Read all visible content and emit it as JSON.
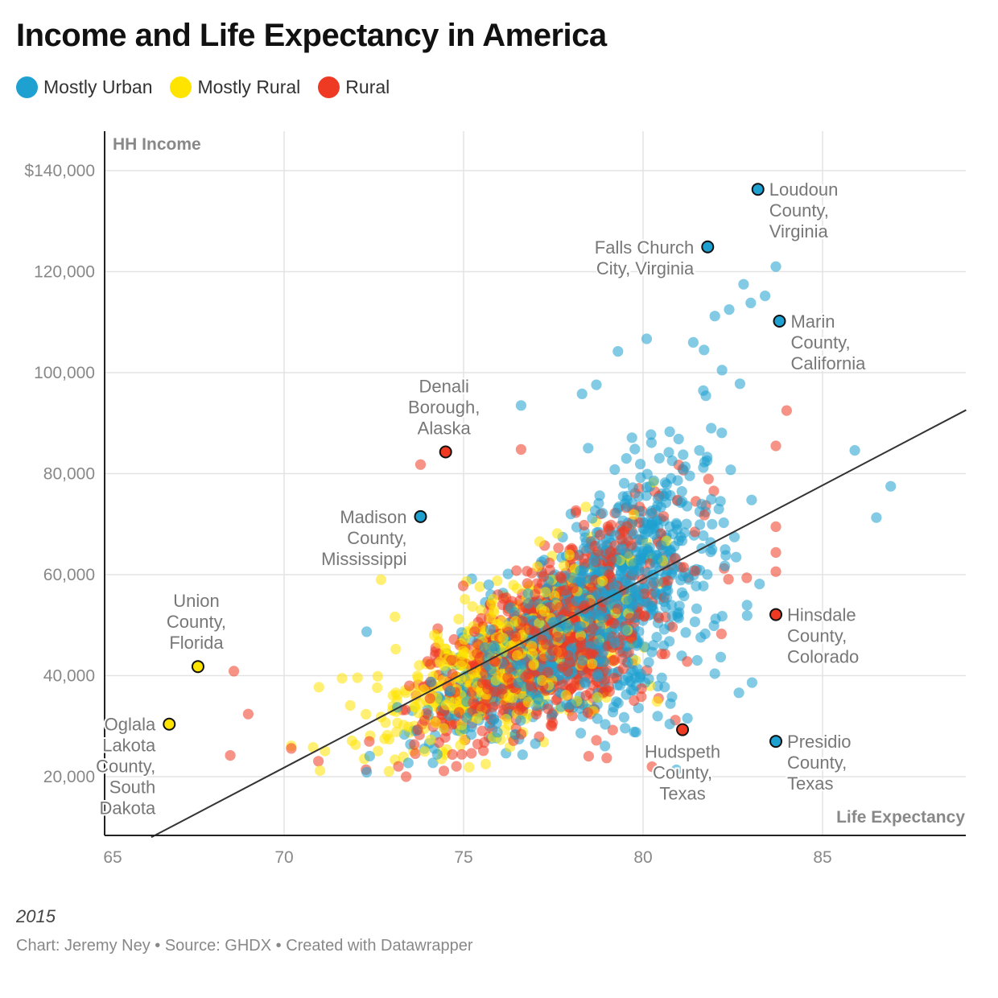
{
  "title": "Income and Life Expectancy in America",
  "legend": [
    {
      "label": "Mostly Urban",
      "color": "#1ea1d0"
    },
    {
      "label": "Mostly Rural",
      "color": "#ffe400"
    },
    {
      "label": "Rural",
      "color": "#ee3a22"
    }
  ],
  "footer": {
    "period": "2015",
    "credit": "Chart: Jeremy Ney • Source: GHDX • Created with Datawrapper"
  },
  "chart_data": {
    "type": "scatter",
    "title": "Income and Life Expectancy in America",
    "xlabel": "Life Expectancy",
    "ylabel": "HH Income",
    "xlim": [
      65,
      89
    ],
    "ylim": [
      8000,
      148000
    ],
    "x_ticks": [
      65,
      70,
      75,
      80,
      85
    ],
    "x_tick_labels": [
      "65",
      "70",
      "75",
      "80",
      "85"
    ],
    "y_ticks": [
      20000,
      40000,
      60000,
      80000,
      100000,
      120000,
      140000
    ],
    "y_tick_labels": [
      "20,000",
      "40,000",
      "60,000",
      "80,000",
      "100,000",
      "120,000",
      "$140,000"
    ],
    "grid": true,
    "legend_position": "top-left",
    "trend_line": {
      "from": [
        66.3,
        8000
      ],
      "to": [
        89,
        92600
      ],
      "color": "#333333"
    },
    "bulk_points_note": "approx. 3000 counties; dense cloud centred near life expectancy 78 and income $50,000",
    "highlighted": [
      {
        "name": "Loudoun County, Virginia",
        "lines": [
          "Loudoun",
          "County,",
          "Virginia"
        ],
        "x": 83.2,
        "y": 136300,
        "category": "Mostly Urban",
        "label_side": "right"
      },
      {
        "name": "Falls Church City, Virginia",
        "lines": [
          "Falls Church",
          "City, Virginia"
        ],
        "x": 81.8,
        "y": 124900,
        "category": "Mostly Urban",
        "label_side": "left"
      },
      {
        "name": "Marin County, California",
        "lines": [
          "Marin",
          "County,",
          "California"
        ],
        "x": 83.8,
        "y": 110200,
        "category": "Mostly Urban",
        "label_side": "right"
      },
      {
        "name": "Denali Borough, Alaska",
        "lines": [
          "Denali",
          "Borough,",
          "Alaska"
        ],
        "x": 74.5,
        "y": 84300,
        "category": "Rural",
        "label_side": "above"
      },
      {
        "name": "Madison County, Mississippi",
        "lines": [
          "Madison",
          "County,",
          "Mississippi"
        ],
        "x": 73.8,
        "y": 71500,
        "category": "Mostly Urban",
        "label_side": "left"
      },
      {
        "name": "Union County, Florida",
        "lines": [
          "Union",
          "County,",
          "Florida"
        ],
        "x": 67.6,
        "y": 41800,
        "category": "Mostly Rural",
        "label_side": "above"
      },
      {
        "name": "Oglala Lakota County, South Dakota",
        "lines": [
          "Oglala",
          "Lakota",
          "County,",
          "South",
          "Dakota"
        ],
        "x": 66.8,
        "y": 30400,
        "category": "Mostly Rural",
        "label_side": "left"
      },
      {
        "name": "Hinsdale County, Colorado",
        "lines": [
          "Hinsdale",
          "County,",
          "Colorado"
        ],
        "x": 83.7,
        "y": 52100,
        "category": "Rural",
        "label_side": "right"
      },
      {
        "name": "Hudspeth County, Texas",
        "lines": [
          "Hudspeth",
          "County,",
          "Texas"
        ],
        "x": 81.1,
        "y": 29300,
        "category": "Rural",
        "label_side": "below"
      },
      {
        "name": "Presidio County, Texas",
        "lines": [
          "Presidio",
          "County,",
          "Texas"
        ],
        "x": 83.7,
        "y": 27000,
        "category": "Mostly Urban",
        "label_side": "right"
      }
    ],
    "outliers": [
      {
        "x": 85.9,
        "y": 84600,
        "category": "Mostly Urban"
      },
      {
        "x": 86.9,
        "y": 77500,
        "category": "Mostly Urban"
      },
      {
        "x": 86.5,
        "y": 71300,
        "category": "Mostly Urban"
      },
      {
        "x": 84.0,
        "y": 92500,
        "category": "Rural"
      },
      {
        "x": 83.7,
        "y": 85500,
        "category": "Rural"
      },
      {
        "x": 83.7,
        "y": 69500,
        "category": "Rural"
      },
      {
        "x": 83.7,
        "y": 64400,
        "category": "Rural"
      },
      {
        "x": 83.7,
        "y": 60600,
        "category": "Rural"
      },
      {
        "x": 82.8,
        "y": 117500,
        "category": "Mostly Urban"
      },
      {
        "x": 83.4,
        "y": 115200,
        "category": "Mostly Urban"
      },
      {
        "x": 83.7,
        "y": 121000,
        "category": "Mostly Urban"
      },
      {
        "x": 83.0,
        "y": 113800,
        "category": "Mostly Urban"
      },
      {
        "x": 82.4,
        "y": 112500,
        "category": "Mostly Urban"
      },
      {
        "x": 82.0,
        "y": 111200,
        "category": "Mostly Urban"
      },
      {
        "x": 80.1,
        "y": 106700,
        "category": "Mostly Urban"
      },
      {
        "x": 79.3,
        "y": 104200,
        "category": "Mostly Urban"
      },
      {
        "x": 82.9,
        "y": 51900,
        "category": "Mostly Urban"
      },
      {
        "x": 82.0,
        "y": 40400,
        "category": "Mostly Urban"
      },
      {
        "x": 68.6,
        "y": 40900,
        "category": "Rural"
      },
      {
        "x": 69.0,
        "y": 32400,
        "category": "Rural"
      },
      {
        "x": 68.5,
        "y": 24200,
        "category": "Rural"
      },
      {
        "x": 70.2,
        "y": 25600,
        "category": "Rural"
      },
      {
        "x": 70.2,
        "y": 26100,
        "category": "Mostly Rural"
      },
      {
        "x": 71.0,
        "y": 21200,
        "category": "Mostly Rural"
      },
      {
        "x": 72.3,
        "y": 20900,
        "category": "Mostly Urban"
      },
      {
        "x": 73.4,
        "y": 20000,
        "category": "Rural"
      },
      {
        "x": 72.7,
        "y": 59000,
        "category": "Mostly Rural"
      },
      {
        "x": 72.3,
        "y": 48700,
        "category": "Mostly Urban"
      },
      {
        "x": 73.8,
        "y": 81800,
        "category": "Rural"
      },
      {
        "x": 76.6,
        "y": 93500,
        "category": "Mostly Urban"
      },
      {
        "x": 76.6,
        "y": 84800,
        "category": "Rural"
      },
      {
        "x": 78.3,
        "y": 95800,
        "category": "Mostly Urban"
      },
      {
        "x": 78.7,
        "y": 97600,
        "category": "Mostly Urban"
      },
      {
        "x": 81.9,
        "y": 89000,
        "category": "Mostly Urban"
      },
      {
        "x": 82.7,
        "y": 97800,
        "category": "Mostly Urban"
      },
      {
        "x": 82.2,
        "y": 100500,
        "category": "Mostly Urban"
      },
      {
        "x": 81.7,
        "y": 104500,
        "category": "Mostly Urban"
      },
      {
        "x": 81.4,
        "y": 106000,
        "category": "Mostly Urban"
      },
      {
        "x": 80.2,
        "y": 38000,
        "category": "Mostly Rural"
      },
      {
        "x": 80.9,
        "y": 31200,
        "category": "Rural"
      },
      {
        "x": 78.7,
        "y": 27200,
        "category": "Rural"
      },
      {
        "x": 79.5,
        "y": 29600,
        "category": "Mostly Urban"
      }
    ]
  }
}
